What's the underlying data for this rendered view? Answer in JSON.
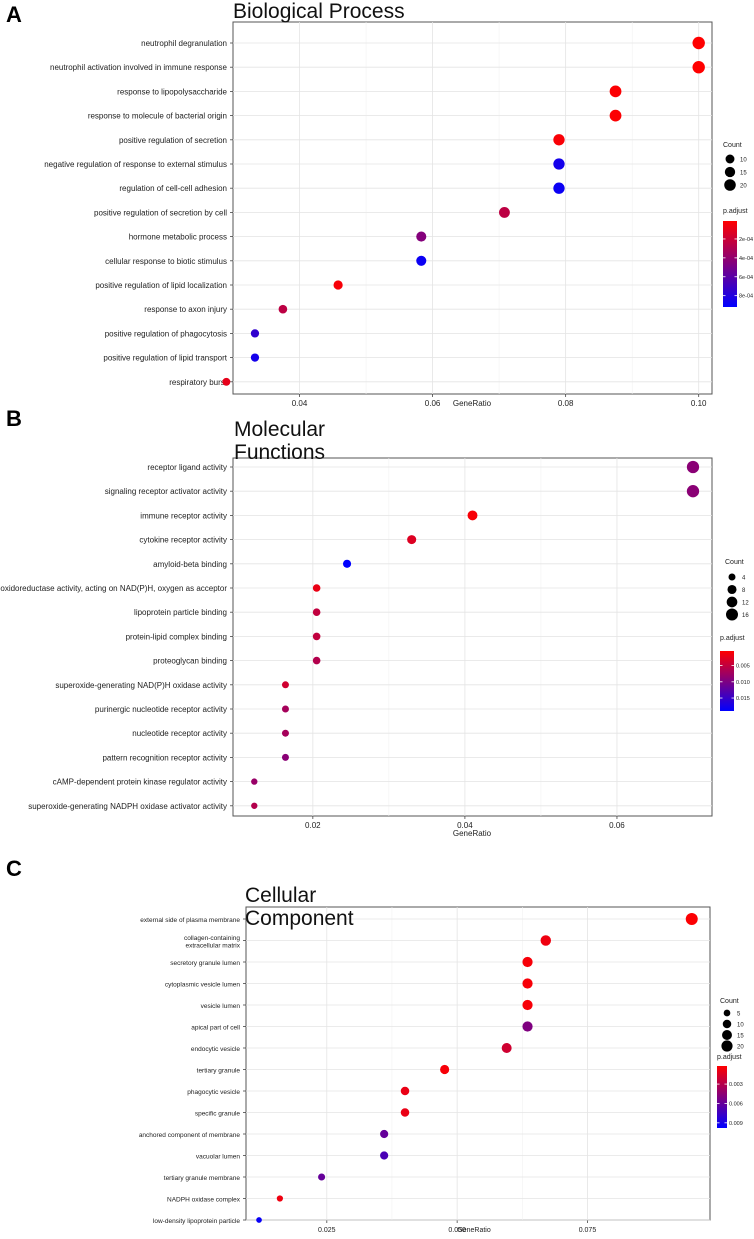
{
  "panels": [
    {
      "letter": "A",
      "title": "Biological Process",
      "colors": {
        "low": "#ff0000",
        "high": "#0000ff"
      },
      "chart_data": {
        "type": "scatter",
        "title": "Biological Process",
        "xlabel": "GeneRatio",
        "ylabel": "",
        "xlim": [
          0.03,
          0.102
        ],
        "xticks": [
          0.04,
          0.06,
          0.08,
          0.1
        ],
        "xtick_labels": [
          "0.04",
          "0.06",
          "0.08",
          "0.10"
        ],
        "categories": [
          "neutrophil degranulation",
          "neutrophil activation involved in immune response",
          "response to lipopolysaccharide",
          "response to molecule of bacterial origin",
          "positive regulation of secretion",
          "negative regulation of response to external stimulus",
          "regulation of cell-cell adhesion",
          "positive regulation of secretion by cell",
          "hormone metabolic process",
          "cellular response to biotic stimulus",
          "positive regulation of lipid localization",
          "response to axon injury",
          "positive regulation of phagocytosis",
          "positive regulation of lipid transport",
          "respiratory burst"
        ],
        "gene_ratio": [
          0.1,
          0.1,
          0.0875,
          0.0875,
          0.079,
          0.079,
          0.079,
          0.0708,
          0.0583,
          0.0583,
          0.0458,
          0.0375,
          0.0333,
          0.0333,
          0.029
        ],
        "count": [
          24,
          24,
          21,
          21,
          19,
          19,
          19,
          17,
          14,
          14,
          11,
          9,
          8,
          8,
          7
        ],
        "p_adjust": [
          1e-05,
          1e-05,
          2e-05,
          2e-05,
          3e-05,
          0.00085,
          0.00088,
          0.00025,
          0.00045,
          0.00088,
          4e-05,
          0.00025,
          0.00075,
          0.00085,
          0.0001
        ],
        "size_legend": {
          "title": "Count",
          "values": [
            10,
            15,
            20
          ],
          "labels": [
            "10",
            "15",
            "20"
          ]
        },
        "color_legend": {
          "title": "p.adjust",
          "min": 1e-05,
          "max": 0.00092,
          "ticks": [
            0.0002,
            0.0004,
            0.0006,
            0.0008
          ],
          "tick_labels": [
            "2e-04",
            "4e-04",
            "6e-04",
            "8e-04"
          ]
        }
      }
    },
    {
      "letter": "B",
      "title": "Molecular Functions",
      "colors": {
        "low": "#ff0000",
        "high": "#0000ff"
      },
      "chart_data": {
        "type": "scatter",
        "title": "Molecular Functions",
        "xlabel": "GeneRatio",
        "ylabel": "",
        "xlim": [
          0.0095,
          0.0725
        ],
        "xticks": [
          0.02,
          0.04,
          0.06
        ],
        "xtick_labels": [
          "0.02",
          "0.04",
          "0.06"
        ],
        "categories": [
          "receptor ligand activity",
          "signaling receptor activator activity",
          "immune receptor activity",
          "cytokine receptor activity",
          "amyloid-beta binding",
          "oxidoreductase activity, acting on NAD(P)H, oxygen as acceptor",
          "lipoprotein particle binding",
          "protein-lipid complex binding",
          "proteoglycan binding",
          "superoxide-generating NAD(P)H oxidase activity",
          "purinergic nucleotide receptor activity",
          "nucleotide receptor activity",
          "pattern recognition receptor activity",
          "cAMP-dependent protein kinase regulator activity",
          "superoxide-generating NADPH oxidase activator activity"
        ],
        "gene_ratio": [
          0.07,
          0.07,
          0.041,
          0.033,
          0.0245,
          0.0205,
          0.0205,
          0.0205,
          0.0205,
          0.0164,
          0.0164,
          0.0164,
          0.0164,
          0.0123,
          0.0123
        ],
        "count": [
          17,
          17,
          10,
          8,
          6,
          5,
          5,
          5,
          5,
          4,
          4,
          4,
          4,
          3,
          3
        ],
        "p_adjust": [
          0.009,
          0.009,
          0.001,
          0.003,
          0.019,
          0.002,
          0.005,
          0.005,
          0.006,
          0.004,
          0.007,
          0.007,
          0.009,
          0.008,
          0.006
        ],
        "size_legend": {
          "title": "Count",
          "values": [
            4,
            8,
            12,
            16
          ],
          "labels": [
            "4",
            "8",
            "12",
            "16"
          ]
        },
        "color_legend": {
          "title": "p.adjust",
          "min": 0.0005,
          "max": 0.019,
          "ticks": [
            0.005,
            0.01,
            0.015
          ],
          "tick_labels": [
            "0.005",
            "0.010",
            "0.015"
          ]
        }
      }
    },
    {
      "letter": "C",
      "title": "Cellular Component",
      "colors": {
        "low": "#ff0000",
        "high": "#0000ff"
      },
      "chart_data": {
        "type": "scatter",
        "title": "Cellular Component",
        "xlabel": "GeneRatio",
        "ylabel": "",
        "xlim": [
          0.0095,
          0.0985
        ],
        "xticks": [
          0.025,
          0.05,
          0.075
        ],
        "xtick_labels": [
          "0.025",
          "0.050",
          "0.075"
        ],
        "categories": [
          "external side of plasma membrane",
          "collagen-containing\nextracellular matrix",
          "secretory granule lumen",
          "cytoplasmic vesicle lumen",
          "vesicle lumen",
          "apical part of cell",
          "endocytic vesicle",
          "tertiary granule",
          "phagocytic vesicle",
          "specific granule",
          "anchored component of membrane",
          "vacuolar lumen",
          "tertiary granule membrane",
          "NADPH oxidase complex",
          "low-density lipoprotein particle"
        ],
        "gene_ratio": [
          0.095,
          0.067,
          0.0635,
          0.0635,
          0.0635,
          0.0635,
          0.0595,
          0.0476,
          0.04,
          0.04,
          0.036,
          0.036,
          0.024,
          0.016,
          0.012
        ],
        "count": [
          24,
          17,
          16,
          16,
          16,
          16,
          15,
          12,
          10,
          10,
          9,
          9,
          6,
          4,
          3
        ],
        "p_adjust": [
          0.0003,
          0.0008,
          0.0005,
          0.0005,
          0.0005,
          0.005,
          0.002,
          0.0005,
          0.001,
          0.001,
          0.006,
          0.007,
          0.006,
          0.0008,
          0.0095
        ],
        "size_legend": {
          "title": "Count",
          "values": [
            5,
            10,
            15,
            20
          ],
          "labels": [
            "5",
            "10",
            "15",
            "20"
          ]
        },
        "color_legend": {
          "title": "p.adjust",
          "min": 0.0002,
          "max": 0.0098,
          "ticks": [
            0.003,
            0.006,
            0.009
          ],
          "tick_labels": [
            "0.003",
            "0.006",
            "0.009"
          ]
        }
      }
    }
  ]
}
